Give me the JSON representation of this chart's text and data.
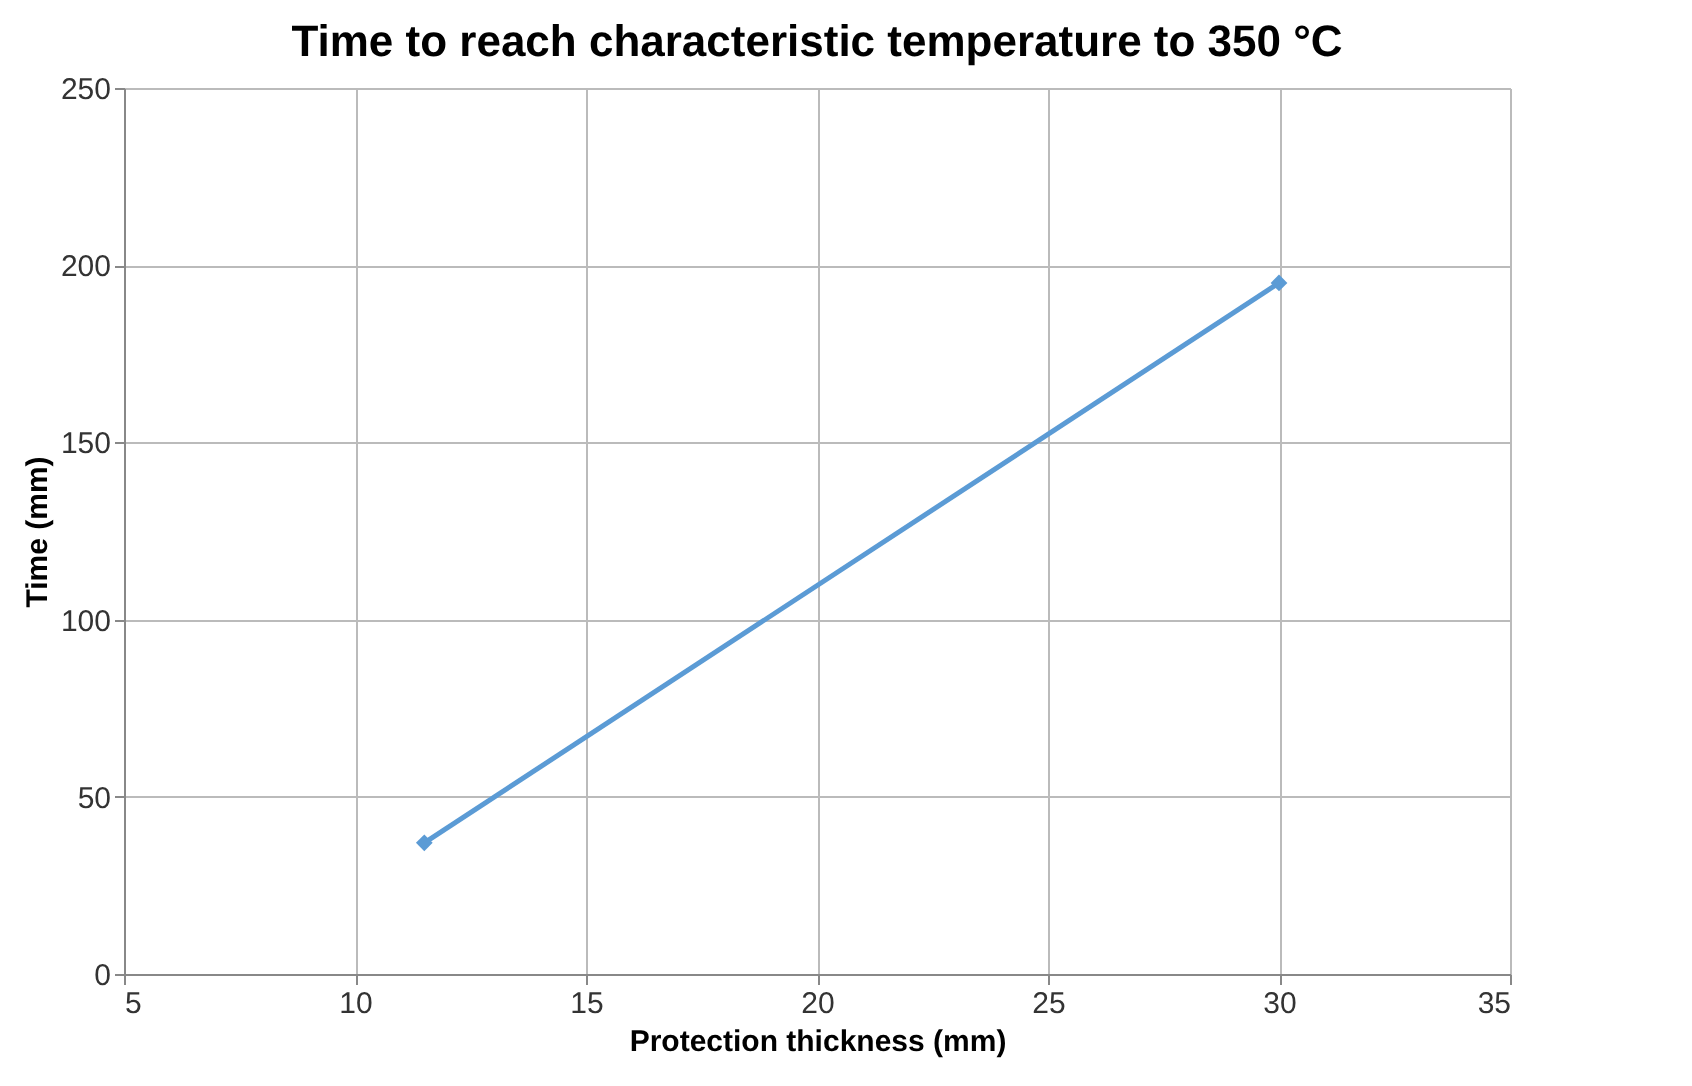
{
  "chart_data": {
    "type": "line",
    "title": "Time to reach characteristic temperature to 350 °C",
    "xlabel": "Protection thickness (mm)",
    "ylabel": "Time (mm)",
    "x": [
      11.5,
      30
    ],
    "series": [
      {
        "color": "#5b9bd5",
        "values": [
          37,
          195
        ]
      }
    ],
    "xlim": [
      5,
      35
    ],
    "xticks": [
      5,
      10,
      15,
      20,
      25,
      30,
      35
    ],
    "ylim": [
      0,
      250
    ],
    "yticks": [
      0,
      50,
      100,
      150,
      200,
      250
    ],
    "grid": true,
    "marker": "diamond",
    "line_style": "solid"
  }
}
